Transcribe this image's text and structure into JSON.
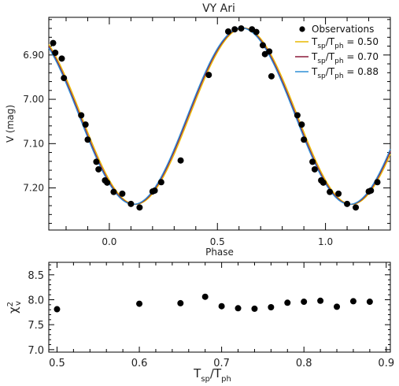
{
  "chart_data": [
    {
      "type": "line",
      "title": "VY Ari",
      "xlabel": "Phase",
      "ylabel": "V (mag)",
      "xlim": [
        -0.28,
        1.3
      ],
      "ylim": [
        7.295,
        6.815
      ],
      "y_inverted": true,
      "grid": false,
      "legend_placement": "top-right",
      "xticks": [
        0.0,
        0.5,
        1.0
      ],
      "xtick_labels": [
        "0.0",
        "0.5",
        "1.0"
      ],
      "yticks": [
        6.9,
        7.0,
        7.1,
        7.2
      ],
      "ytick_labels": [
        "6.90",
        "7.00",
        "7.10",
        "7.20"
      ],
      "observations": {
        "name": "Observations",
        "color": "#000000",
        "points": [
          [
            -0.26,
            6.873
          ],
          [
            -0.25,
            6.895
          ],
          [
            -0.22,
            6.908
          ],
          [
            -0.21,
            6.952
          ],
          [
            -0.13,
            7.036
          ],
          [
            -0.11,
            7.057
          ],
          [
            -0.1,
            7.091
          ],
          [
            -0.06,
            7.141
          ],
          [
            -0.05,
            7.158
          ],
          [
            -0.02,
            7.183
          ],
          [
            -0.01,
            7.188
          ],
          [
            0.02,
            7.209
          ],
          [
            0.06,
            7.213
          ],
          [
            0.1,
            7.236
          ],
          [
            0.14,
            7.244
          ],
          [
            0.2,
            7.208
          ],
          [
            0.21,
            7.206
          ],
          [
            0.24,
            7.187
          ],
          [
            0.33,
            7.138
          ],
          [
            0.46,
            6.945
          ],
          [
            0.55,
            6.847
          ],
          [
            0.58,
            6.842
          ],
          [
            0.61,
            6.84
          ],
          [
            0.66,
            6.842
          ],
          [
            0.68,
            6.848
          ],
          [
            0.71,
            6.878
          ],
          [
            0.72,
            6.898
          ],
          [
            0.74,
            6.892
          ],
          [
            0.75,
            6.948
          ],
          [
            0.87,
            7.036
          ],
          [
            0.89,
            7.057
          ],
          [
            0.9,
            7.091
          ],
          [
            0.94,
            7.141
          ],
          [
            0.95,
            7.158
          ],
          [
            0.98,
            7.183
          ],
          [
            0.99,
            7.188
          ],
          [
            1.02,
            7.209
          ],
          [
            1.06,
            7.213
          ],
          [
            1.1,
            7.236
          ],
          [
            1.14,
            7.244
          ],
          [
            1.2,
            7.208
          ],
          [
            1.21,
            7.206
          ],
          [
            1.24,
            7.187
          ]
        ]
      },
      "series": [
        {
          "name": "T_sp/T_ph = 0.50",
          "label_main": "T",
          "label_sub1": "sp",
          "label_mid": "/T",
          "label_sub2": "ph",
          "label_tail": " = 0.50",
          "color": "#e8b800",
          "phase_shift": 0.006,
          "mean": 7.038,
          "amp": 0.199
        },
        {
          "name": "T_sp/T_ph = 0.70",
          "label_main": "T",
          "label_sub1": "sp",
          "label_mid": "/T",
          "label_sub2": "ph",
          "label_tail": " = 0.70",
          "color": "#8b1a3a",
          "phase_shift": 0.0,
          "mean": 7.038,
          "amp": 0.199
        },
        {
          "name": "T_sp/T_ph = 0.88",
          "label_main": "T",
          "label_sub1": "sp",
          "label_mid": "/T",
          "label_sub2": "ph",
          "label_tail": " = 0.88",
          "color": "#2f8fd6",
          "phase_shift": -0.004,
          "mean": 7.038,
          "amp": 0.199
        }
      ],
      "model_phase_of_max": 0.615
    },
    {
      "type": "scatter",
      "xlabel_main": "T",
      "xlabel_sub1": "sp",
      "xlabel_mid": "/T",
      "xlabel_sub2": "ph",
      "ylabel_main": "χ",
      "ylabel_sup": "2",
      "ylabel_sub": "v",
      "xlim": [
        0.49,
        0.905
      ],
      "ylim": [
        6.95,
        8.75
      ],
      "xticks": [
        0.5,
        0.6,
        0.7,
        0.8,
        0.9
      ],
      "xtick_labels": [
        "0.5",
        "0.6",
        "0.7",
        "0.8",
        "0.9"
      ],
      "yticks": [
        7.0,
        7.5,
        8.0,
        8.5
      ],
      "ytick_labels": [
        "7.0",
        "7.5",
        "8.0",
        "8.5"
      ],
      "grid": false,
      "x": [
        0.5,
        0.6,
        0.65,
        0.68,
        0.7,
        0.72,
        0.74,
        0.76,
        0.78,
        0.8,
        0.82,
        0.84,
        0.86,
        0.88
      ],
      "y": [
        7.81,
        7.92,
        7.93,
        8.06,
        7.87,
        7.83,
        7.82,
        7.85,
        7.94,
        7.96,
        7.98,
        7.86,
        7.97,
        7.96
      ]
    }
  ]
}
